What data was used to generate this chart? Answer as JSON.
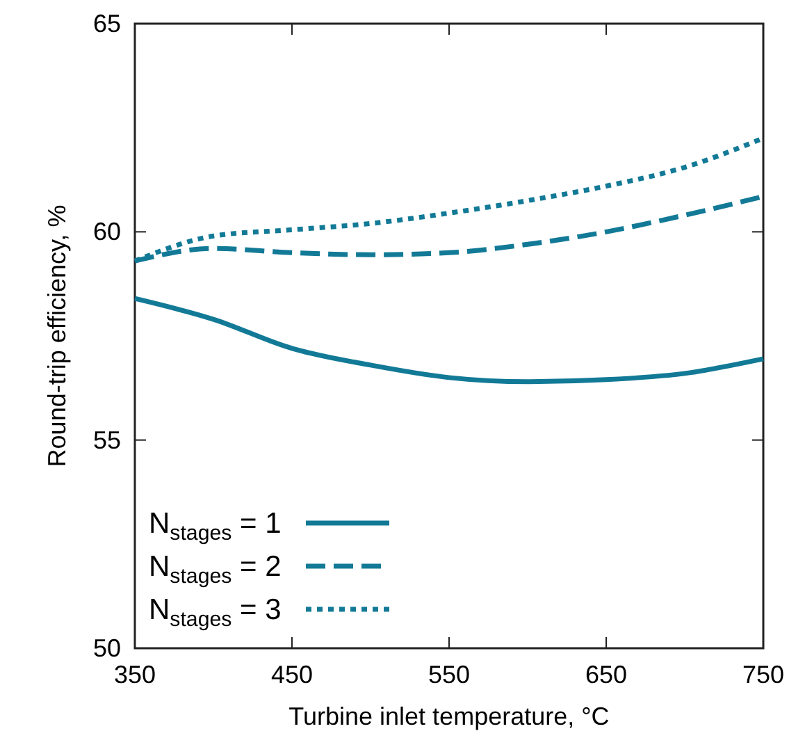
{
  "chart_data": {
    "type": "line",
    "xlabel": "Turbine inlet temperature, °C",
    "ylabel": "Round-trip efficiency, %",
    "x": [
      350,
      400,
      450,
      500,
      550,
      600,
      650,
      700,
      750
    ],
    "series": [
      {
        "name": "N$_{stages}$ = 1",
        "color": "#127a96",
        "line_style": "solid",
        "values": [
          58.4,
          57.9,
          57.2,
          56.8,
          56.5,
          56.4,
          56.45,
          56.6,
          56.95
        ]
      },
      {
        "name": "N$_{stages}$ = 2",
        "color": "#127a96",
        "line_style": "dashed",
        "values": [
          59.3,
          59.6,
          59.5,
          59.45,
          59.5,
          59.7,
          60.0,
          60.4,
          60.85
        ]
      },
      {
        "name": "N$_{stages}$ = 3",
        "color": "#127a96",
        "line_style": "dotted",
        "values": [
          59.3,
          59.9,
          60.05,
          60.2,
          60.45,
          60.75,
          61.1,
          61.55,
          62.25
        ]
      }
    ],
    "xlim": [
      350,
      750
    ],
    "xticks": [
      350,
      450,
      550,
      650,
      750
    ],
    "ylim": [
      50,
      65
    ],
    "yticks": [
      50,
      55,
      60,
      65
    ],
    "grid": false,
    "legend": "bottom left",
    "marker": "none"
  }
}
